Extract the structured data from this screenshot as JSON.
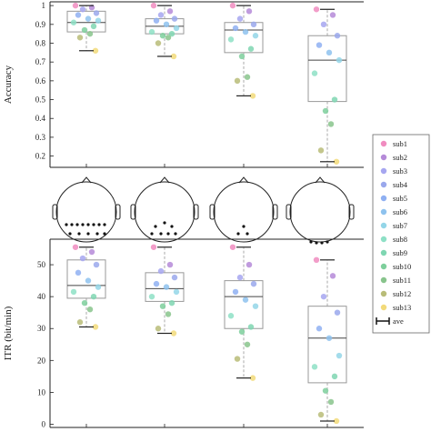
{
  "chart_data": [
    {
      "type": "box",
      "ylabel": "Accuracy",
      "ylim": [
        0.14,
        1.02
      ],
      "yticks": [
        0.2,
        0.3,
        0.4,
        0.5,
        0.6,
        0.7,
        0.8,
        0.9,
        1
      ],
      "ytick_labels": [
        "0.2",
        "0.3",
        "0.4",
        "0.5",
        "0.6",
        "0.7",
        "0.8",
        "0.9",
        "1"
      ],
      "boxes": [
        {
          "q1": 0.86,
          "median": 0.91,
          "q3": 0.97,
          "whisker_low": 0.76,
          "whisker_high": 1.0,
          "points": [
            1.0,
            0.99,
            0.98,
            0.96,
            0.95,
            0.93,
            0.92,
            0.91,
            0.89,
            0.87,
            0.85,
            0.83,
            0.76
          ],
          "ave": 0.91
        },
        {
          "q1": 0.85,
          "median": 0.89,
          "q3": 0.93,
          "whisker_low": 0.73,
          "whisker_high": 1.0,
          "points": [
            1.0,
            0.97,
            0.95,
            0.93,
            0.92,
            0.9,
            0.88,
            0.86,
            0.85,
            0.84,
            0.83,
            0.8,
            0.73
          ],
          "ave": 0.89
        },
        {
          "q1": 0.75,
          "median": 0.87,
          "q3": 0.91,
          "whisker_low": 0.52,
          "whisker_high": 1.0,
          "points": [
            1.0,
            0.97,
            0.93,
            0.9,
            0.88,
            0.86,
            0.84,
            0.82,
            0.77,
            0.73,
            0.62,
            0.6,
            0.52
          ],
          "ave": 0.82
        },
        {
          "q1": 0.49,
          "median": 0.71,
          "q3": 0.84,
          "whisker_low": 0.17,
          "whisker_high": 0.98,
          "points": [
            0.98,
            0.95,
            0.9,
            0.84,
            0.79,
            0.75,
            0.71,
            0.64,
            0.5,
            0.44,
            0.37,
            0.23,
            0.17
          ],
          "ave": 0.66
        }
      ]
    },
    {
      "type": "box",
      "ylabel": "ITR (bit/min)",
      "ylim": [
        -1,
        58
      ],
      "yticks": [
        0,
        10,
        20,
        30,
        40,
        50
      ],
      "ytick_labels": [
        "0",
        "10",
        "20",
        "30",
        "40",
        "50"
      ],
      "boxes": [
        {
          "q1": 39.5,
          "median": 43.5,
          "q3": 51.5,
          "whisker_low": 30.5,
          "whisker_high": 55.5,
          "points": [
            55.5,
            54,
            52,
            50,
            47.5,
            45,
            43,
            41.5,
            40,
            38,
            36,
            32,
            30.5
          ],
          "ave": 44
        },
        {
          "q1": 38.5,
          "median": 42.5,
          "q3": 47.5,
          "whisker_low": 28.5,
          "whisker_high": 55.5,
          "points": [
            55.5,
            50,
            48,
            46,
            44,
            43,
            41.5,
            40,
            38,
            37,
            34.5,
            30,
            28.5
          ],
          "ave": 42
        },
        {
          "q1": 30,
          "median": 40,
          "q3": 45,
          "whisker_low": 14.5,
          "whisker_high": 55.5,
          "points": [
            55.5,
            50,
            46,
            44,
            41.5,
            39,
            37,
            34,
            30.5,
            29,
            25,
            20.5,
            14.5
          ],
          "ave": 37
        },
        {
          "q1": 13,
          "median": 27,
          "q3": 37,
          "whisker_low": 1,
          "whisker_high": 51.5,
          "points": [
            51.5,
            46.5,
            40,
            35,
            30,
            27,
            21.5,
            18,
            15,
            10.5,
            7,
            3,
            1
          ],
          "ave": 25
        }
      ]
    }
  ],
  "legend": {
    "items": [
      "sub1",
      "sub2",
      "sub3",
      "sub4",
      "sub5",
      "sub6",
      "sub7",
      "sub8",
      "sub9",
      "sub10",
      "sub11",
      "sub12",
      "sub13"
    ],
    "colors": [
      "#f08cc0",
      "#b58ad8",
      "#a6a6f0",
      "#9aa8ec",
      "#8fb0f2",
      "#8ec2ee",
      "#94d6e8",
      "#8ee0c6",
      "#7fd6b2",
      "#7ecf9c",
      "#88c48c",
      "#b8bc78",
      "#f2da7a"
    ],
    "ave_label": "ave"
  },
  "head_maps": [
    {
      "electrodes": 10
    },
    {
      "electrodes": 5
    },
    {
      "electrodes": 3
    },
    {
      "electrodes": 3
    }
  ]
}
